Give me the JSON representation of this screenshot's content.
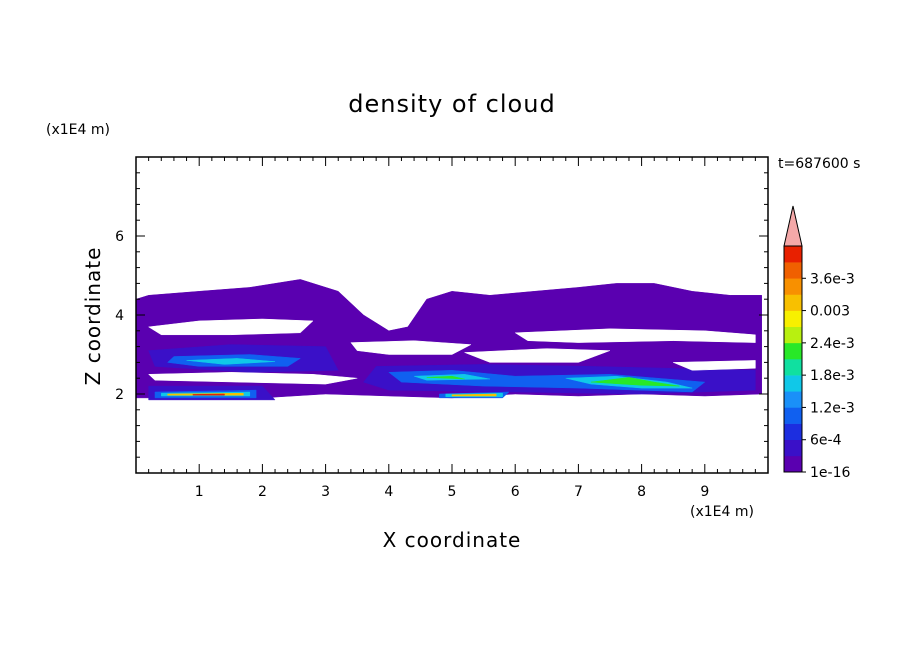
{
  "chart_data": {
    "type": "heatmap",
    "title": "density of cloud",
    "xlabel": "X coordinate",
    "ylabel": "Z coordinate",
    "x_unit": "(x1E4 m)",
    "y_unit": "(x1E4 m)",
    "time_label": "t=687600 s",
    "xlim": [
      0,
      10
    ],
    "ylim": [
      0,
      8
    ],
    "x_ticks": [
      "1",
      "2",
      "3",
      "4",
      "5",
      "6",
      "7",
      "8",
      "9"
    ],
    "y_ticks": [
      "2",
      "4",
      "6"
    ],
    "colorbar": {
      "labels": [
        "1e-16",
        "6e-4",
        "1.2e-3",
        "1.8e-3",
        "2.4e-3",
        "0.003",
        "3.6e-3"
      ],
      "colors": [
        "#5a00b0",
        "#3a10c8",
        "#1c2ee0",
        "#1060f0",
        "#1a90f8",
        "#10c8e8",
        "#10e0a0",
        "#28e828",
        "#b8f010",
        "#f8f000",
        "#f8c000",
        "#f89000",
        "#f06000",
        "#e82000"
      ],
      "extend_color": "#f4a8a8"
    },
    "layers": [
      {
        "level": "1e-16",
        "color": "#5a00b0",
        "regions": [
          [
            [
              0.2,
              4.5
            ],
            [
              1.0,
              4.6
            ],
            [
              1.8,
              4.7
            ],
            [
              2.6,
              4.9
            ],
            [
              3.2,
              4.6
            ],
            [
              3.6,
              4.0
            ],
            [
              4.0,
              3.6
            ],
            [
              4.3,
              3.7
            ],
            [
              4.6,
              4.4
            ],
            [
              5.0,
              4.6
            ],
            [
              5.6,
              4.5
            ],
            [
              6.3,
              4.6
            ],
            [
              7.0,
              4.7
            ],
            [
              7.6,
              4.8
            ],
            [
              8.2,
              4.8
            ],
            [
              8.8,
              4.6
            ],
            [
              9.4,
              4.5
            ],
            [
              9.9,
              4.5
            ],
            [
              9.9,
              2.0
            ],
            [
              9.0,
              1.95
            ],
            [
              8.0,
              2.0
            ],
            [
              7.0,
              1.95
            ],
            [
              6.0,
              2.0
            ],
            [
              5.0,
              1.9
            ],
            [
              4.0,
              1.95
            ],
            [
              3.0,
              2.0
            ],
            [
              2.0,
              1.9
            ],
            [
              1.0,
              1.9
            ],
            [
              0.0,
              1.9
            ],
            [
              0.0,
              4.4
            ]
          ]
        ]
      },
      {
        "level": "6e-4",
        "color": "#3a10c8",
        "regions": [
          [
            [
              0.2,
              3.1
            ],
            [
              1.5,
              3.25
            ],
            [
              3.0,
              3.2
            ],
            [
              3.2,
              2.6
            ],
            [
              1.8,
              2.55
            ],
            [
              0.3,
              2.7
            ]
          ],
          [
            [
              3.8,
              2.7
            ],
            [
              5.5,
              2.75
            ],
            [
              7.2,
              2.7
            ],
            [
              9.8,
              2.6
            ],
            [
              9.8,
              2.1
            ],
            [
              8.0,
              2.0
            ],
            [
              6.0,
              2.05
            ],
            [
              4.0,
              2.1
            ],
            [
              3.6,
              2.3
            ]
          ],
          [
            [
              0.2,
              2.2
            ],
            [
              2.0,
              2.2
            ],
            [
              2.2,
              1.85
            ],
            [
              0.2,
              1.85
            ]
          ]
        ]
      },
      {
        "level": "1.2e-3",
        "color": "#1060f0",
        "regions": [
          [
            [
              0.6,
              2.95
            ],
            [
              1.8,
              3.0
            ],
            [
              2.6,
              2.9
            ],
            [
              2.4,
              2.7
            ],
            [
              1.0,
              2.7
            ],
            [
              0.5,
              2.8
            ]
          ],
          [
            [
              4.0,
              2.55
            ],
            [
              5.0,
              2.6
            ],
            [
              6.0,
              2.45
            ],
            [
              7.5,
              2.5
            ],
            [
              9.0,
              2.3
            ],
            [
              8.8,
              2.05
            ],
            [
              7.0,
              2.15
            ],
            [
              5.5,
              2.2
            ],
            [
              4.2,
              2.3
            ]
          ],
          [
            [
              0.3,
              2.05
            ],
            [
              1.9,
              2.1
            ],
            [
              1.9,
              1.9
            ],
            [
              0.3,
              1.9
            ]
          ],
          [
            [
              4.8,
              2.0
            ],
            [
              5.9,
              2.05
            ],
            [
              5.8,
              1.9
            ],
            [
              4.8,
              1.9
            ]
          ]
        ]
      },
      {
        "level": "1.8e-3",
        "color": "#10c8e8",
        "regions": [
          [
            [
              0.8,
              2.85
            ],
            [
              1.6,
              2.9
            ],
            [
              2.2,
              2.82
            ],
            [
              1.4,
              2.75
            ]
          ],
          [
            [
              4.4,
              2.45
            ],
            [
              5.2,
              2.5
            ],
            [
              5.6,
              2.38
            ],
            [
              4.6,
              2.35
            ]
          ],
          [
            [
              6.8,
              2.4
            ],
            [
              7.6,
              2.45
            ],
            [
              8.4,
              2.3
            ],
            [
              8.8,
              2.15
            ],
            [
              8.0,
              2.15
            ],
            [
              7.2,
              2.25
            ]
          ],
          [
            [
              0.4,
              2.02
            ],
            [
              1.8,
              2.05
            ],
            [
              1.8,
              1.95
            ],
            [
              0.4,
              1.95
            ]
          ],
          [
            [
              4.9,
              2.0
            ],
            [
              5.8,
              2.02
            ],
            [
              5.8,
              1.93
            ],
            [
              4.9,
              1.93
            ]
          ]
        ]
      },
      {
        "level": "2.4e-3",
        "color": "#28e828",
        "regions": [
          [
            [
              7.2,
              2.3
            ],
            [
              7.8,
              2.42
            ],
            [
              8.2,
              2.3
            ],
            [
              8.6,
              2.2
            ],
            [
              8.0,
              2.22
            ]
          ],
          [
            [
              4.6,
              2.42
            ],
            [
              5.0,
              2.45
            ],
            [
              5.2,
              2.38
            ]
          ]
        ]
      },
      {
        "level": "0.003",
        "color": "#f8c000",
        "regions": [
          [
            [
              0.5,
              2.0
            ],
            [
              1.7,
              2.02
            ],
            [
              1.7,
              1.97
            ],
            [
              0.5,
              1.97
            ]
          ],
          [
            [
              5.0,
              1.98
            ],
            [
              5.7,
              2.0
            ],
            [
              5.7,
              1.95
            ],
            [
              5.0,
              1.95
            ]
          ]
        ]
      },
      {
        "level": "3.6e-3",
        "color": "#e82000",
        "regions": [
          [
            [
              0.9,
              1.99
            ],
            [
              1.4,
              2.0
            ],
            [
              1.4,
              1.97
            ],
            [
              0.9,
              1.97
            ]
          ]
        ]
      }
    ],
    "gaps": [
      [
        [
          0.2,
          3.7
        ],
        [
          1.0,
          3.85
        ],
        [
          2.0,
          3.9
        ],
        [
          2.8,
          3.85
        ],
        [
          2.6,
          3.55
        ],
        [
          1.5,
          3.5
        ],
        [
          0.4,
          3.5
        ]
      ],
      [
        [
          3.4,
          3.3
        ],
        [
          4.4,
          3.35
        ],
        [
          5.3,
          3.25
        ],
        [
          5.0,
          3.0
        ],
        [
          4.0,
          3.0
        ],
        [
          3.5,
          3.1
        ]
      ],
      [
        [
          6.0,
          3.55
        ],
        [
          7.5,
          3.65
        ],
        [
          9.0,
          3.6
        ],
        [
          9.8,
          3.5
        ],
        [
          9.8,
          3.3
        ],
        [
          8.5,
          3.35
        ],
        [
          7.0,
          3.3
        ],
        [
          6.2,
          3.35
        ]
      ],
      [
        [
          5.2,
          3.05
        ],
        [
          6.5,
          3.15
        ],
        [
          7.5,
          3.1
        ],
        [
          7.0,
          2.8
        ],
        [
          5.6,
          2.8
        ]
      ],
      [
        [
          0.2,
          2.5
        ],
        [
          1.5,
          2.55
        ],
        [
          2.8,
          2.5
        ],
        [
          3.5,
          2.4
        ],
        [
          3.0,
          2.25
        ],
        [
          1.6,
          2.3
        ],
        [
          0.3,
          2.35
        ]
      ],
      [
        [
          8.5,
          2.8
        ],
        [
          9.8,
          2.85
        ],
        [
          9.8,
          2.65
        ],
        [
          8.8,
          2.6
        ]
      ]
    ]
  }
}
